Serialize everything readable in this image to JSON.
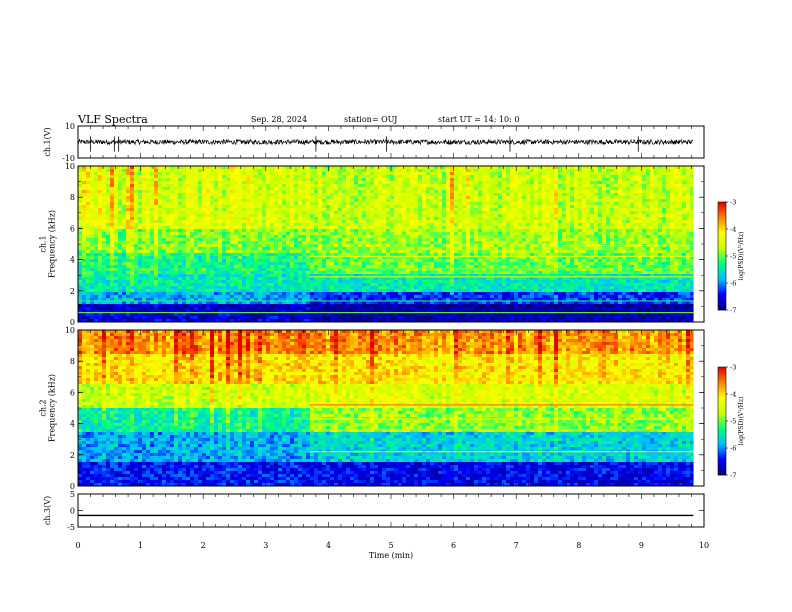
{
  "header": {
    "title": "VLF Spectra",
    "date": "Sep. 28, 2024",
    "station": "station= OUJ",
    "start_ut": "start  UT =   14: 10: 0"
  },
  "colors": {
    "colormap": [
      "#000080",
      "#0000ff",
      "#00bfff",
      "#00ff7f",
      "#c8ff00",
      "#ffff00",
      "#ff8000",
      "#e00000",
      "#ffffff"
    ],
    "trace": "#000000",
    "frame": "#000000"
  },
  "chart_data": [
    {
      "type": "line",
      "name": "ch1-waveform",
      "ylabel": "ch.1(V)",
      "ylim": [
        -10,
        10
      ],
      "yticks": [
        "10",
        "-10"
      ],
      "x_range": [
        0,
        9.83
      ],
      "baseline": 0,
      "noise_amplitude": 1.5,
      "spikes": [
        0.2,
        0.58,
        0.65,
        3.8,
        4.93,
        6.9,
        8.95
      ]
    },
    {
      "type": "heatmap",
      "name": "ch1-spectrogram",
      "ylabel": "ch.1\nFrequency (kHz)",
      "ylim": [
        0,
        10
      ],
      "yticks": [
        "0",
        "2",
        "4",
        "6",
        "8",
        "10"
      ],
      "x_range": [
        0,
        9.83
      ],
      "colorbar": {
        "label": "log(PSD)(V²/Hz)",
        "range": [
          -7,
          -3
        ],
        "ticks": [
          "-3",
          "-4",
          "-5",
          "-6",
          "-7"
        ]
      },
      "regime_change_min": 3.7,
      "levels": [
        {
          "fmax": 0.5,
          "before": -6.6,
          "after": -6.8
        },
        {
          "fmax": 1.2,
          "before": -6.7,
          "after": -6.9
        },
        {
          "fmax": 2.0,
          "before": -5.9,
          "after": -6.3
        },
        {
          "fmax": 3.0,
          "before": -5.5,
          "after": -5.5
        },
        {
          "fmax": 4.5,
          "before": -5.3,
          "after": -5.0
        },
        {
          "fmax": 6.0,
          "before": -4.9,
          "after": -4.8
        },
        {
          "fmax": 8.0,
          "before": -4.5,
          "after": -4.6
        },
        {
          "fmax": 10.0,
          "before": -4.5,
          "after": -4.6
        }
      ],
      "lines_khz": [
        {
          "f": 0.6,
          "v": -5.0,
          "from": 0
        },
        {
          "f": 1.35,
          "v": -5.2,
          "from": 0
        },
        {
          "f": 2.9,
          "v": -4.6,
          "from": 3.7
        },
        {
          "f": 3.4,
          "v": -4.9,
          "from": 3.7
        },
        {
          "f": 4.2,
          "v": -4.4,
          "from": 3.7
        },
        {
          "f": 4.9,
          "v": -4.3,
          "from": 7.5
        }
      ]
    },
    {
      "type": "heatmap",
      "name": "ch2-spectrogram",
      "ylabel": "ch.2\nFrequency (kHz)",
      "ylim": [
        0,
        10
      ],
      "yticks": [
        "0",
        "2",
        "4",
        "6",
        "8",
        "10"
      ],
      "x_range": [
        0,
        9.83
      ],
      "colorbar": {
        "label": "log(PSD)(V²/Hz)",
        "range": [
          -7,
          -3
        ],
        "ticks": [
          "-3",
          "-4",
          "-5",
          "-6",
          "-7"
        ]
      },
      "regime_change_min": 3.7,
      "levels": [
        {
          "fmax": 1.5,
          "before": -6.4,
          "after": -6.5
        },
        {
          "fmax": 3.5,
          "before": -5.9,
          "after": -5.7
        },
        {
          "fmax": 5.0,
          "before": -5.4,
          "after": -4.9
        },
        {
          "fmax": 6.5,
          "before": -4.6,
          "after": -4.5
        },
        {
          "fmax": 8.5,
          "before": -4.0,
          "after": -4.1
        },
        {
          "fmax": 10.0,
          "before": -3.6,
          "after": -3.7
        }
      ],
      "lines_khz": [
        {
          "f": 2.2,
          "v": -4.2,
          "from": 3.7
        },
        {
          "f": 3.6,
          "v": -4.0,
          "from": 3.7
        },
        {
          "f": 4.3,
          "v": -4.1,
          "from": 3.7
        },
        {
          "f": 5.2,
          "v": -3.5,
          "from": 3.7
        },
        {
          "f": 6.8,
          "v": -4.0,
          "from": 6.0
        }
      ]
    },
    {
      "type": "line",
      "name": "ch3-waveform",
      "ylabel": "ch.3(V)",
      "ylim": [
        -5,
        5
      ],
      "yticks": [
        "5",
        "0",
        "-5"
      ],
      "x_range": [
        0,
        9.83
      ],
      "baseline": -1.5,
      "noise_amplitude": 0
    },
    {
      "type": "axis",
      "name": "time-axis",
      "xlabel": "Time (min)",
      "xlim": [
        0,
        10
      ],
      "xticks": [
        "0",
        "1",
        "2",
        "3",
        "4",
        "5",
        "6",
        "7",
        "8",
        "9",
        "10"
      ]
    }
  ]
}
